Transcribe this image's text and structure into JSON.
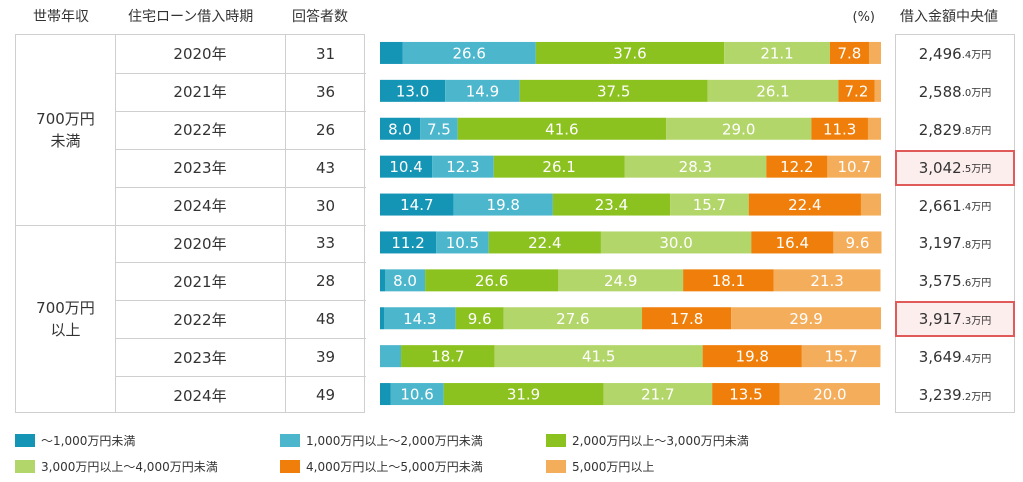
{
  "headers": {
    "income": "世帯年収",
    "period": "住宅ローン借入時期",
    "respondents": "回答者数",
    "unit": "(%)",
    "median": "借入金額中央値"
  },
  "groups": [
    {
      "line1": "700万円",
      "line2": "未満"
    },
    {
      "line1": "700万円",
      "line2": "以上"
    }
  ],
  "rows": [
    {
      "year": "2020年",
      "n": "31",
      "med_main": "2,496",
      "med_sub": ".4万円",
      "highlight": false
    },
    {
      "year": "2021年",
      "n": "36",
      "med_main": "2,588",
      "med_sub": ".0万円",
      "highlight": false
    },
    {
      "year": "2022年",
      "n": "26",
      "med_main": "2,829",
      "med_sub": ".8万円",
      "highlight": false
    },
    {
      "year": "2023年",
      "n": "43",
      "med_main": "3,042",
      "med_sub": ".5万円",
      "highlight": true
    },
    {
      "year": "2024年",
      "n": "30",
      "med_main": "2,661",
      "med_sub": ".4万円",
      "highlight": false
    },
    {
      "year": "2020年",
      "n": "33",
      "med_main": "3,197",
      "med_sub": ".8万円",
      "highlight": false
    },
    {
      "year": "2021年",
      "n": "28",
      "med_main": "3,575",
      "med_sub": ".6万円",
      "highlight": false
    },
    {
      "year": "2022年",
      "n": "48",
      "med_main": "3,917",
      "med_sub": ".3万円",
      "highlight": true
    },
    {
      "year": "2023年",
      "n": "39",
      "med_main": "3,649",
      "med_sub": ".4万円",
      "highlight": false
    },
    {
      "year": "2024年",
      "n": "49",
      "med_main": "3,239",
      "med_sub": ".2万円",
      "highlight": false
    }
  ],
  "chart_data": {
    "type": "bar",
    "stacked": true,
    "orientation": "horizontal",
    "unit": "(%)",
    "categories": [
      "2020年",
      "2021年",
      "2022年",
      "2023年",
      "2024年",
      "2020年",
      "2021年",
      "2022年",
      "2023年",
      "2024年"
    ],
    "groups": [
      "700万円未満",
      "700万円以上"
    ],
    "series": [
      {
        "name": "～1,000万円未満",
        "color": "#1595b5",
        "values": [
          4.5,
          13.0,
          8.0,
          10.4,
          14.7,
          11.2,
          1.0,
          0.8,
          0.0,
          2.1
        ],
        "labels": [
          "",
          "13.0",
          "8.0",
          "10.4",
          "14.7",
          "11.2",
          "",
          "",
          "",
          ""
        ]
      },
      {
        "name": "1,000万円以上～2,000万円未満",
        "color": "#4cb6cc",
        "values": [
          26.6,
          14.9,
          7.5,
          12.3,
          19.8,
          10.5,
          8.0,
          14.3,
          4.2,
          10.6
        ],
        "labels": [
          "26.6",
          "14.9",
          "7.5",
          "12.3",
          "19.8",
          "10.5",
          "8.0",
          "14.3",
          "",
          "10.6"
        ]
      },
      {
        "name": "2,000万円以上～3,000万円未満",
        "color": "#8cc21f",
        "values": [
          37.6,
          37.5,
          41.6,
          26.1,
          23.4,
          22.4,
          26.6,
          9.6,
          18.7,
          31.9
        ],
        "labels": [
          "37.6",
          "37.5",
          "41.6",
          "26.1",
          "23.4",
          "22.4",
          "26.6",
          "9.6",
          "18.7",
          "31.9"
        ]
      },
      {
        "name": "3,000万円以上～4,000万円未満",
        "color": "#b3d66a",
        "values": [
          21.1,
          26.1,
          29.0,
          28.3,
          15.7,
          30.0,
          24.9,
          27.6,
          41.5,
          21.7
        ],
        "labels": [
          "21.1",
          "26.1",
          "29.0",
          "28.3",
          "15.7",
          "30.0",
          "24.9",
          "27.6",
          "41.5",
          "21.7"
        ]
      },
      {
        "name": "4,000万円以上～5,000万円未満",
        "color": "#ef7f0a",
        "values": [
          7.8,
          7.2,
          11.3,
          12.2,
          22.4,
          16.4,
          18.1,
          17.8,
          19.8,
          13.5
        ],
        "labels": [
          "7.8",
          "7.2",
          "11.3",
          "12.2",
          "22.4",
          "16.4",
          "18.1",
          "17.8",
          "19.8",
          "13.5"
        ]
      },
      {
        "name": "5,000万円以上",
        "color": "#f4ad5b",
        "values": [
          2.4,
          1.3,
          2.6,
          10.7,
          4.0,
          9.6,
          21.3,
          29.9,
          15.7,
          20.0
        ],
        "labels": [
          "",
          "",
          "",
          "10.7",
          "",
          "9.6",
          "21.3",
          "29.9",
          "15.7",
          "20.0"
        ]
      }
    ],
    "xlim": [
      0,
      100
    ]
  }
}
